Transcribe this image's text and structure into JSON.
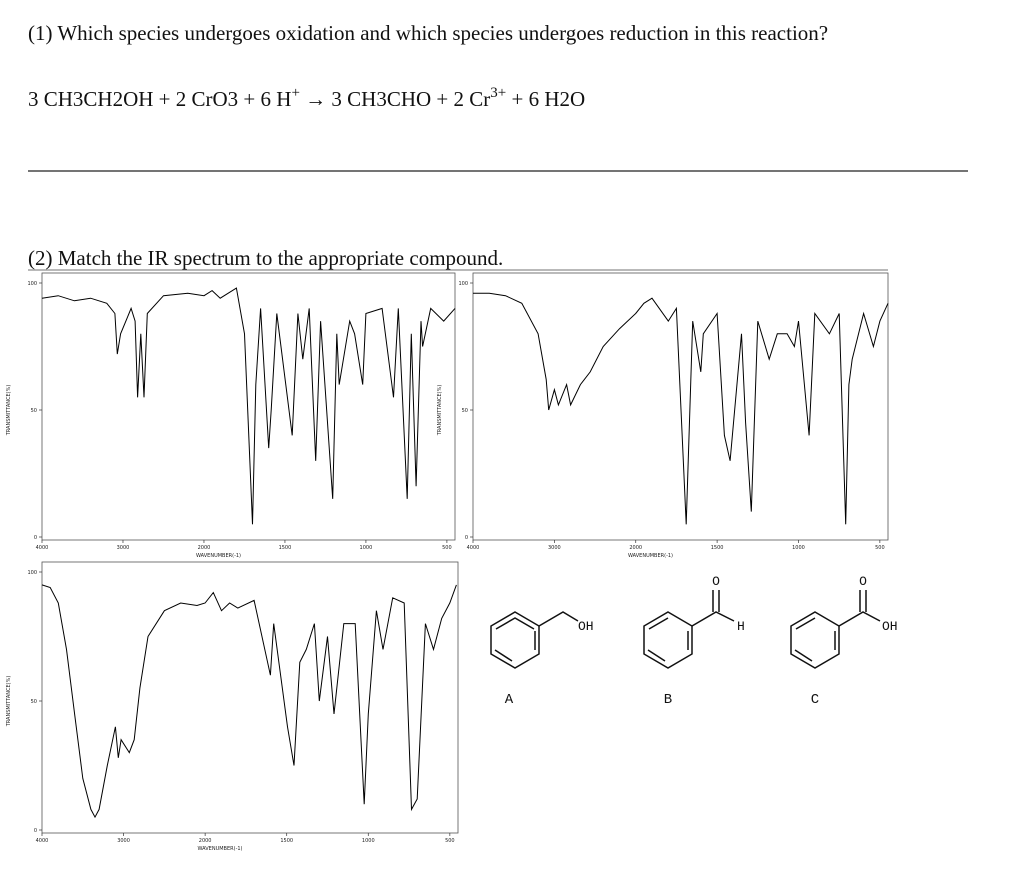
{
  "question1": {
    "text": "(1) Which species undergoes oxidation and which species undergoes reduction in this reaction?",
    "equation": [
      "3 CH3CH2OH + 2 CrO3 + 6 H",
      "+",
      " → 3 CH3CHO + 2 Cr",
      "3+",
      " + 6 H2O"
    ]
  },
  "question2": {
    "text": "(2) Match the IR spectrum to the appropriate compound."
  },
  "compounds": [
    {
      "label": "A",
      "atoms": [
        "OH"
      ]
    },
    {
      "label": "B",
      "atoms": [
        "O",
        "H"
      ]
    },
    {
      "label": "C",
      "atoms": [
        "O",
        "OH"
      ]
    }
  ],
  "chart_data": [
    {
      "type": "line",
      "color": "#000000",
      "x_label": "WAVENUMBER(-1)",
      "y_label": "TRANSMITTANCE(%)",
      "xlim": [
        4000,
        450
      ],
      "ylim": [
        0,
        100
      ],
      "xticks": [
        4000,
        3000,
        2000,
        1500,
        1000,
        500
      ],
      "yticks": [
        0,
        50,
        100
      ],
      "x": [
        4000,
        3800,
        3600,
        3400,
        3200,
        3100,
        3070,
        3030,
        2900,
        2850,
        2820,
        2780,
        2740,
        2700,
        2500,
        2200,
        2000,
        1950,
        1900,
        1800,
        1750,
        1700,
        1680,
        1650,
        1600,
        1585,
        1550,
        1455,
        1420,
        1390,
        1350,
        1310,
        1280,
        1205,
        1180,
        1165,
        1100,
        1070,
        1020,
        1000,
        900,
        830,
        800,
        745,
        720,
        690,
        660,
        650,
        600,
        520,
        450
      ],
      "values": [
        94,
        95,
        93,
        94,
        92,
        88,
        72,
        80,
        90,
        85,
        55,
        80,
        55,
        88,
        95,
        96,
        95,
        97,
        94,
        98,
        80,
        5,
        60,
        90,
        35,
        50,
        88,
        40,
        88,
        70,
        90,
        30,
        85,
        15,
        80,
        60,
        85,
        80,
        60,
        88,
        90,
        55,
        90,
        15,
        80,
        20,
        85,
        75,
        90,
        85,
        90
      ]
    },
    {
      "type": "line",
      "color": "#000000",
      "x_label": "WAVENUMBER(-1)",
      "y_label": "TRANSMITTANCE(%)",
      "xlim": [
        4000,
        450
      ],
      "ylim": [
        0,
        100
      ],
      "xticks": [
        4000,
        3000,
        2000,
        1500,
        1000,
        500
      ],
      "yticks": [
        0,
        50,
        100
      ],
      "x": [
        4000,
        3800,
        3600,
        3400,
        3200,
        3100,
        3070,
        3000,
        2950,
        2850,
        2800,
        2680,
        2560,
        2400,
        2200,
        2000,
        1950,
        1900,
        1800,
        1750,
        1690,
        1650,
        1600,
        1585,
        1500,
        1455,
        1420,
        1350,
        1325,
        1290,
        1250,
        1180,
        1130,
        1070,
        1025,
        1000,
        935,
        900,
        810,
        750,
        710,
        690,
        670,
        600,
        540,
        500,
        450
      ],
      "values": [
        96,
        96,
        95,
        92,
        80,
        62,
        50,
        58,
        52,
        60,
        52,
        60,
        65,
        75,
        82,
        88,
        92,
        94,
        85,
        90,
        5,
        85,
        65,
        80,
        88,
        40,
        30,
        80,
        45,
        10,
        85,
        70,
        80,
        80,
        75,
        85,
        40,
        88,
        80,
        88,
        5,
        60,
        70,
        88,
        75,
        85,
        92
      ]
    },
    {
      "type": "line",
      "color": "#000000",
      "x_label": "WAVENUMBER(-1)",
      "y_label": "TRANSMITTANCE(%)",
      "xlim": [
        4000,
        450
      ],
      "ylim": [
        0,
        100
      ],
      "xticks": [
        4000,
        3000,
        2000,
        1500,
        1000,
        500
      ],
      "yticks": [
        0,
        50,
        100
      ],
      "x": [
        4000,
        3900,
        3800,
        3700,
        3600,
        3500,
        3400,
        3350,
        3300,
        3200,
        3100,
        3065,
        3030,
        2930,
        2870,
        2800,
        2700,
        2500,
        2300,
        2100,
        2000,
        1950,
        1900,
        1850,
        1800,
        1700,
        1600,
        1580,
        1495,
        1455,
        1420,
        1380,
        1330,
        1300,
        1250,
        1210,
        1150,
        1080,
        1025,
        1000,
        950,
        910,
        850,
        780,
        735,
        700,
        650,
        600,
        550,
        500,
        460
      ],
      "values": [
        95,
        94,
        88,
        70,
        45,
        20,
        8,
        5,
        8,
        25,
        40,
        28,
        35,
        30,
        35,
        55,
        75,
        85,
        88,
        87,
        88,
        92,
        85,
        88,
        86,
        89,
        60,
        80,
        40,
        25,
        65,
        70,
        80,
        50,
        75,
        45,
        80,
        80,
        10,
        45,
        85,
        70,
        90,
        88,
        8,
        12,
        80,
        70,
        82,
        88,
        95
      ]
    }
  ]
}
